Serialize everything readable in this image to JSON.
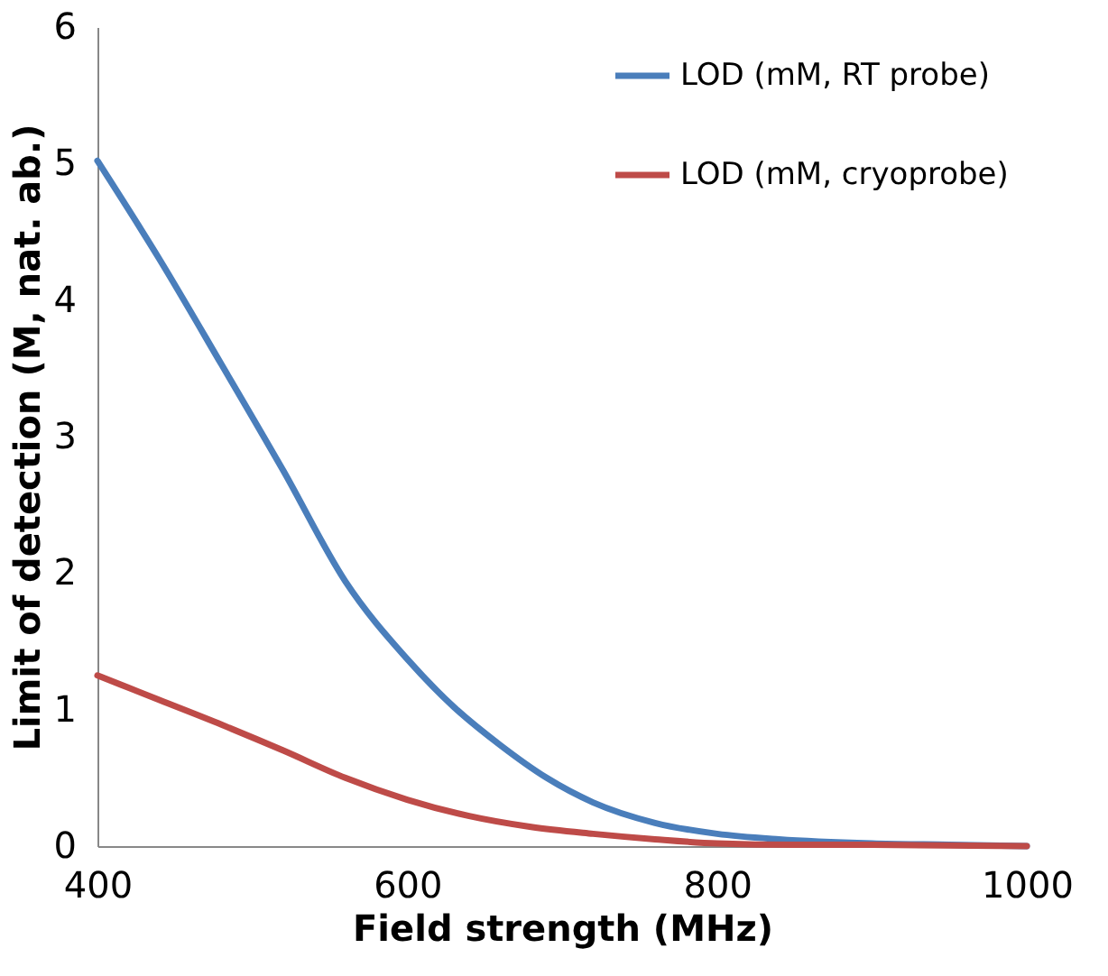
{
  "chart_data": {
    "type": "line",
    "xlabel": "Field strength (MHz)",
    "ylabel": "Limit of detection (M, nat. ab.)",
    "xlim": [
      400,
      1000
    ],
    "xticks": [
      400,
      600,
      800,
      1000
    ],
    "ylim": [
      0,
      6
    ],
    "yticks": [
      0,
      1,
      2,
      3,
      4,
      5,
      6
    ],
    "grid": false,
    "legend": "top right",
    "marker": "none",
    "line_style": "solid",
    "series": [
      {
        "name": "LOD (mM, RT probe)",
        "color": "#4a7ebb",
        "x": [
          400,
          440,
          480,
          520,
          560,
          600,
          630,
          660,
          690,
          720,
          760,
          800,
          840,
          900,
          950,
          1000
        ],
        "values": [
          5.02,
          4.3,
          3.53,
          2.75,
          1.94,
          1.37,
          1.02,
          0.74,
          0.5,
          0.32,
          0.17,
          0.09,
          0.05,
          0.02,
          0.01,
          0
        ]
      },
      {
        "name": "LOD (mM, cryoprobe)",
        "color": "#be4b48",
        "x": [
          400,
          440,
          480,
          520,
          560,
          600,
          640,
          680,
          720,
          760,
          800,
          850,
          900,
          1000
        ],
        "values": [
          1.25,
          1.07,
          0.89,
          0.7,
          0.5,
          0.34,
          0.22,
          0.14,
          0.09,
          0.05,
          0.02,
          0.01,
          0.01,
          0
        ]
      }
    ]
  }
}
